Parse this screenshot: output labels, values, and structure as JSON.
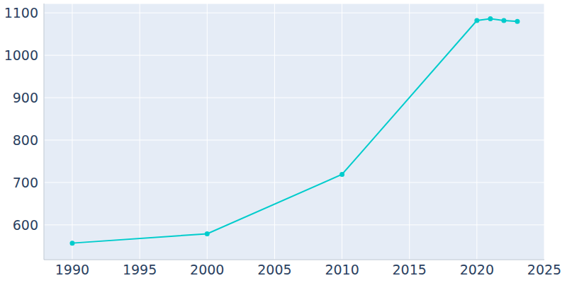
{
  "chart_data": {
    "type": "line",
    "x": [
      1990,
      2000,
      2010,
      2020,
      2021,
      2022,
      2023
    ],
    "values": [
      557,
      579,
      719,
      1082,
      1086,
      1082,
      1080
    ],
    "color": "#00cccc",
    "marker": "circle",
    "xlim": [
      1987.9,
      2025
    ],
    "ylim": [
      518,
      1122
    ],
    "xticks": [
      1990,
      1995,
      2000,
      2005,
      2010,
      2015,
      2020,
      2025
    ],
    "yticks": [
      600,
      700,
      800,
      900,
      1000,
      1100
    ],
    "grid": true
  }
}
